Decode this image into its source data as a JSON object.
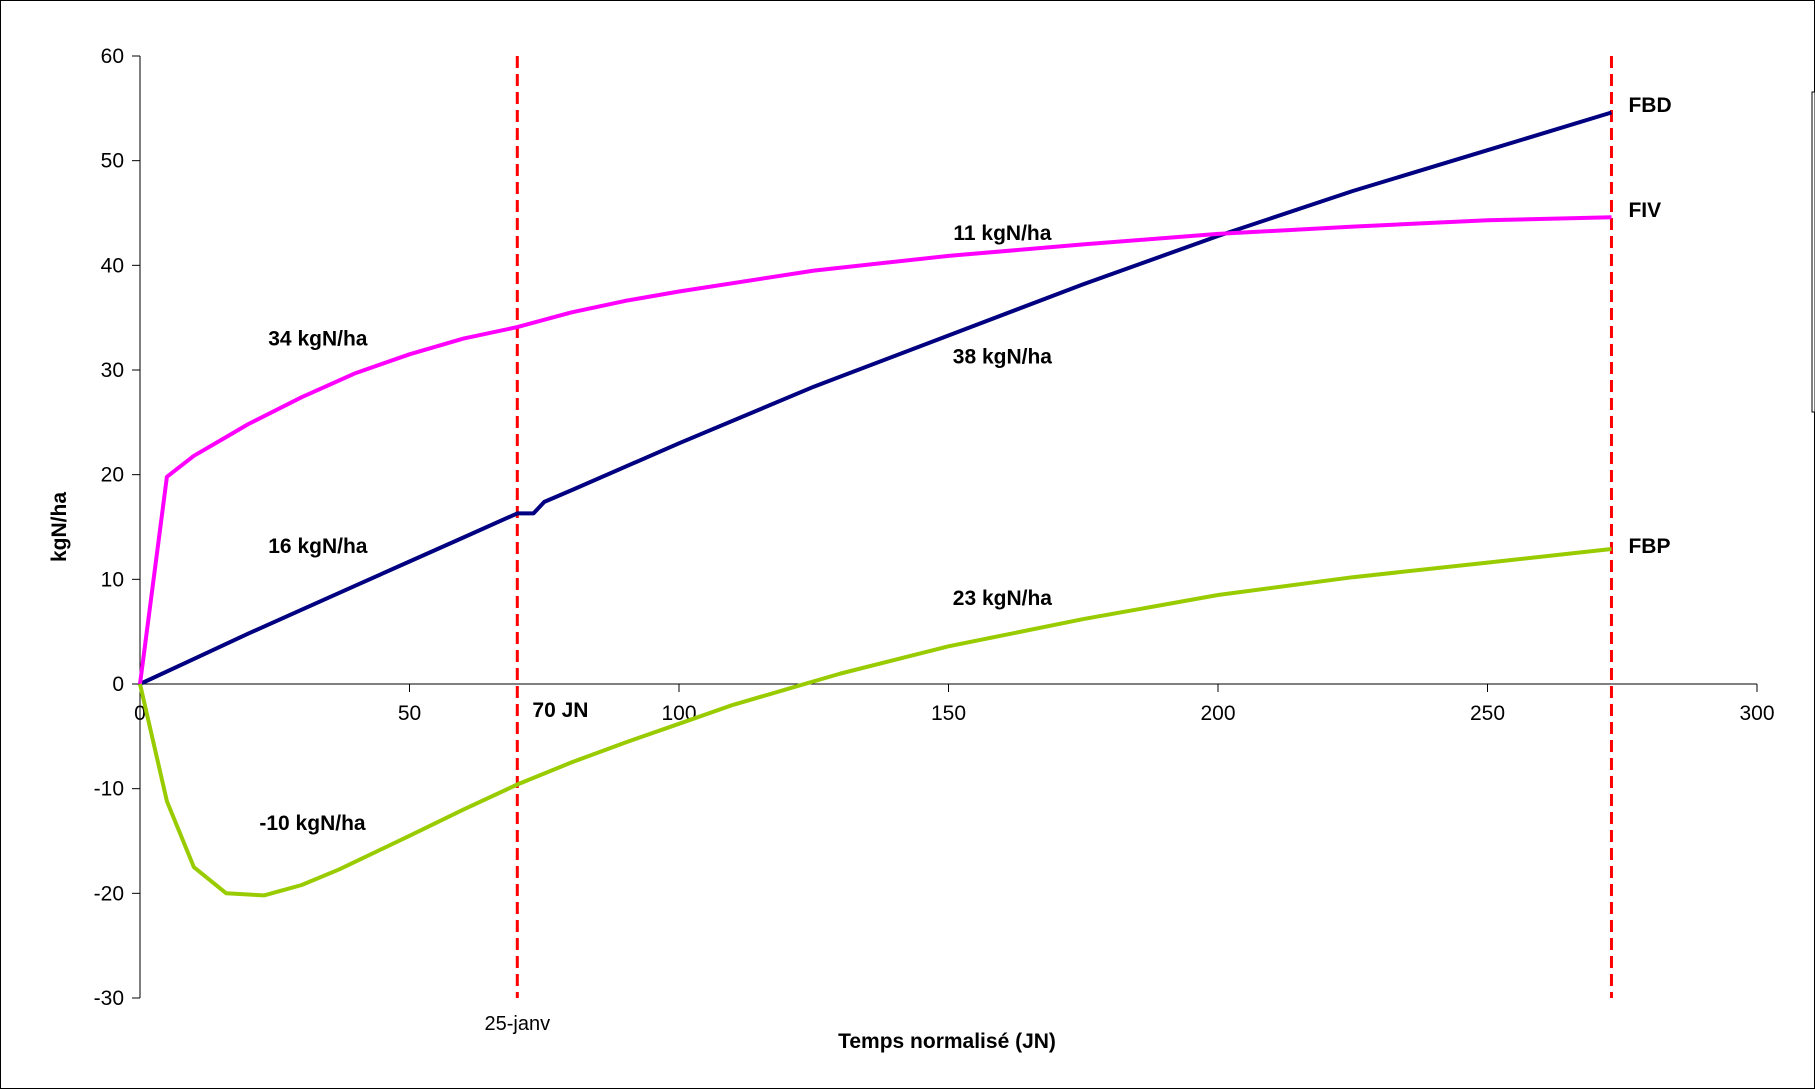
{
  "chart_data": {
    "type": "line",
    "title": "",
    "xlabel": "Temps normalisé (JN)",
    "ylabel": "kgN/ha",
    "xlim": [
      0,
      300
    ],
    "ylim": [
      -30,
      60
    ],
    "x_ticks": [
      0,
      50,
      100,
      150,
      200,
      250,
      300
    ],
    "y_ticks": [
      -30,
      -20,
      -10,
      0,
      10,
      20,
      30,
      40,
      50,
      60
    ],
    "grid": false,
    "legend": "none",
    "series": [
      {
        "name": "FBD",
        "color": "#000080",
        "points": [
          [
            0,
            0
          ],
          [
            10,
            2.4
          ],
          [
            20,
            4.8
          ],
          [
            30,
            7.1
          ],
          [
            40,
            9.4
          ],
          [
            50,
            11.7
          ],
          [
            60,
            14.0
          ],
          [
            70,
            16.3
          ],
          [
            73,
            16.3
          ],
          [
            75,
            17.4
          ],
          [
            80,
            18.5
          ],
          [
            100,
            23.0
          ],
          [
            125,
            28.4
          ],
          [
            150,
            33.3
          ],
          [
            175,
            38.2
          ],
          [
            200,
            42.8
          ],
          [
            225,
            47.1
          ],
          [
            250,
            51.0
          ],
          [
            273,
            54.6
          ]
        ]
      },
      {
        "name": "FIV",
        "color": "#ff00ff",
        "points": [
          [
            0,
            0
          ],
          [
            5,
            19.8
          ],
          [
            10,
            21.8
          ],
          [
            15,
            23.3
          ],
          [
            20,
            24.8
          ],
          [
            30,
            27.4
          ],
          [
            40,
            29.7
          ],
          [
            50,
            31.5
          ],
          [
            60,
            33.0
          ],
          [
            70,
            34.1
          ],
          [
            80,
            35.5
          ],
          [
            90,
            36.6
          ],
          [
            100,
            37.5
          ],
          [
            125,
            39.5
          ],
          [
            150,
            40.9
          ],
          [
            175,
            42.0
          ],
          [
            200,
            43.0
          ],
          [
            225,
            43.7
          ],
          [
            250,
            44.3
          ],
          [
            273,
            44.6
          ]
        ]
      },
      {
        "name": "FBP",
        "color": "#99cc00",
        "points": [
          [
            0,
            0
          ],
          [
            5,
            -11.2
          ],
          [
            10,
            -17.5
          ],
          [
            16,
            -20.0
          ],
          [
            23,
            -20.2
          ],
          [
            30,
            -19.2
          ],
          [
            37,
            -17.7
          ],
          [
            50,
            -14.5
          ],
          [
            60,
            -12.0
          ],
          [
            70,
            -9.6
          ],
          [
            80,
            -7.5
          ],
          [
            90,
            -5.6
          ],
          [
            100,
            -3.8
          ],
          [
            110,
            -2.0
          ],
          [
            120,
            -0.5
          ],
          [
            130,
            1.0
          ],
          [
            150,
            3.6
          ],
          [
            175,
            6.2
          ],
          [
            200,
            8.5
          ],
          [
            225,
            10.2
          ],
          [
            250,
            11.6
          ],
          [
            273,
            12.9
          ]
        ]
      }
    ],
    "reference_lines": [
      {
        "x": 70,
        "color": "#ff0000",
        "label": "70 JN",
        "date_label": "25-janv"
      },
      {
        "x": 273,
        "color": "#ff0000"
      }
    ],
    "annotations": [
      {
        "text": "34 kgN/ha",
        "x": 33,
        "y": 33
      },
      {
        "text": "16 kgN/ha",
        "x": 33,
        "y": 13.2
      },
      {
        "text": "-10 kgN/ha",
        "x": 32,
        "y": -13.3
      },
      {
        "text": "11 kgN/ha",
        "x": 160,
        "y": 43.1
      },
      {
        "text": "38 kgN/ha",
        "x": 160,
        "y": 31.3
      },
      {
        "text": "23 kgN/ha",
        "x": 160,
        "y": 8.2
      },
      {
        "text": "70 JN",
        "x": 78,
        "y": -2.5
      }
    ],
    "series_end_labels": [
      {
        "text": "FBD",
        "y": 55.3
      },
      {
        "text": "FIV",
        "y": 45.3
      },
      {
        "text": "FBP",
        "y": 13.2
      }
    ]
  }
}
